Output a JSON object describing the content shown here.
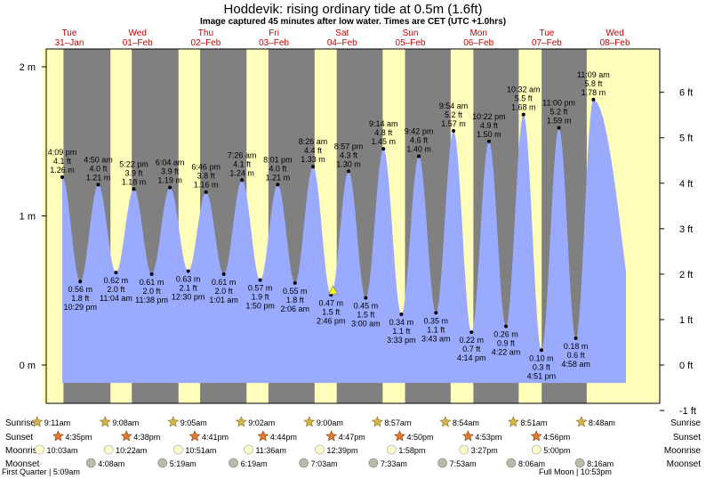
{
  "title": "Hoddevik: rising  ordinary tide at 0.5m (1.6ft)",
  "subtitle": "Image captured 45 minutes after low water. Times are CET (UTC +1.0hrs)",
  "chart_data": {
    "type": "area",
    "y_unit_left": "m",
    "y_unit_right": "ft",
    "ylim_m": [
      -0.63,
      2.08
    ],
    "yticks_left": [
      "2 m",
      "1 m",
      "0 m"
    ],
    "yticks_right": [
      "6 ft",
      "5 ft",
      "4 ft",
      "3 ft",
      "2 ft",
      "1 ft",
      "0 ft",
      "-1 ft"
    ],
    "days": [
      {
        "dow": "Tue",
        "date": "31–Jan"
      },
      {
        "dow": "Wed",
        "date": "01–Feb"
      },
      {
        "dow": "Thu",
        "date": "02–Feb"
      },
      {
        "dow": "Fri",
        "date": "03–Feb"
      },
      {
        "dow": "Sat",
        "date": "04–Feb"
      },
      {
        "dow": "Sun",
        "date": "05–Feb"
      },
      {
        "dow": "Mon",
        "date": "06–Feb"
      },
      {
        "dow": "Tue",
        "date": "07–Feb"
      },
      {
        "dow": "Wed",
        "date": "08–Feb"
      }
    ],
    "tides": [
      {
        "type": "high",
        "time": "4:09 pm",
        "m": 1.26,
        "ft": "4.1 ft",
        "m_label": "1.26 m"
      },
      {
        "type": "low",
        "time": "10:29 pm",
        "m": 0.56,
        "ft": "1.8 ft",
        "m_label": "0.56 m"
      },
      {
        "type": "high",
        "time": "4:50 am",
        "m": 1.21,
        "ft": "4.0 ft",
        "m_label": "1.21 m"
      },
      {
        "type": "low",
        "time": "11:04 am",
        "m": 0.62,
        "ft": "2.0 ft",
        "m_label": "0.62 m"
      },
      {
        "type": "high",
        "time": "5:22 pm",
        "m": 1.18,
        "ft": "3.9 ft",
        "m_label": "1.18 m"
      },
      {
        "type": "low",
        "time": "11:38 pm",
        "m": 0.61,
        "ft": "2.0 ft",
        "m_label": "0.61 m"
      },
      {
        "type": "high",
        "time": "6:04 am",
        "m": 1.19,
        "ft": "3.9 ft",
        "m_label": "1.19 m"
      },
      {
        "type": "low",
        "time": "12:30 pm",
        "m": 0.63,
        "ft": "2.1 ft",
        "m_label": "0.63 m"
      },
      {
        "type": "high",
        "time": "6:46 pm",
        "m": 1.16,
        "ft": "3.8 ft",
        "m_label": "1.16 m"
      },
      {
        "type": "low",
        "time": "1:01 am",
        "m": 0.61,
        "ft": "2.0 ft",
        "m_label": "0.61 m"
      },
      {
        "type": "high",
        "time": "7:26 am",
        "m": 1.24,
        "ft": "4.1 ft",
        "m_label": "1.24 m"
      },
      {
        "type": "low",
        "time": "1:50 pm",
        "m": 0.57,
        "ft": "1.9 ft",
        "m_label": "0.57 m"
      },
      {
        "type": "high",
        "time": "8:01 pm",
        "m": 1.21,
        "ft": "4.0 ft",
        "m_label": "1.21 m"
      },
      {
        "type": "low",
        "time": "2:06 am",
        "m": 0.55,
        "ft": "1.8 ft",
        "m_label": "0.55 m"
      },
      {
        "type": "high",
        "time": "8:26 am",
        "m": 1.33,
        "ft": "4.4 ft",
        "m_label": "1.33 m"
      },
      {
        "type": "low",
        "time": "2:46 pm",
        "m": 0.47,
        "ft": "1.5 ft",
        "m_label": "0.47 m"
      },
      {
        "type": "high",
        "time": "8:57 pm",
        "m": 1.3,
        "ft": "4.3 ft",
        "m_label": "1.30 m"
      },
      {
        "type": "low",
        "time": "3:00 am",
        "m": 0.45,
        "ft": "1.5 ft",
        "m_label": "0.45 m"
      },
      {
        "type": "high",
        "time": "9:14 am",
        "m": 1.45,
        "ft": "4.8 ft",
        "m_label": "1.45 m"
      },
      {
        "type": "low",
        "time": "3:33 pm",
        "m": 0.34,
        "ft": "1.1 ft",
        "m_label": "0.34 m"
      },
      {
        "type": "high",
        "time": "9:42 pm",
        "m": 1.4,
        "ft": "4.6 ft",
        "m_label": "1.40 m"
      },
      {
        "type": "low",
        "time": "3:43 am",
        "m": 0.35,
        "ft": "1.1 ft",
        "m_label": "0.35 m"
      },
      {
        "type": "high",
        "time": "9:54 am",
        "m": 1.57,
        "ft": "5.2 ft",
        "m_label": "1.57 m"
      },
      {
        "type": "low",
        "time": "4:14 pm",
        "m": 0.22,
        "ft": "0.7 ft",
        "m_label": "0.22 m"
      },
      {
        "type": "high",
        "time": "10:22 pm",
        "m": 1.5,
        "ft": "4.9 ft",
        "m_label": "1.50 m"
      },
      {
        "type": "low",
        "time": "4:22 am",
        "m": 0.26,
        "ft": "0.9 ft",
        "m_label": "0.26 m"
      },
      {
        "type": "high",
        "time": "10:32 am",
        "m": 1.68,
        "ft": "5.5 ft",
        "m_label": "1.68 m"
      },
      {
        "type": "low",
        "time": "4:51 pm",
        "m": 0.1,
        "ft": "0.3 ft",
        "m_label": "0.10 m"
      },
      {
        "type": "high",
        "time": "11:00 pm",
        "m": 1.59,
        "ft": "5.2 ft",
        "m_label": "1.59 m"
      },
      {
        "type": "low",
        "time": "4:58 am",
        "m": 0.18,
        "ft": "0.6 ft",
        "m_label": "0.18 m"
      },
      {
        "type": "high",
        "time": "11:09 am",
        "m": 1.78,
        "ft": "5.8 ft",
        "m_label": "1.78 m"
      }
    ],
    "current_marker": {
      "time": "3:31 pm Sat 04-Feb",
      "m": 0.5
    },
    "colors": {
      "water": "#99aaff",
      "day": "#ffffbb",
      "night": "#808080",
      "day_label": "#cc0000",
      "marker": "#ffff00"
    }
  },
  "rows": {
    "labels": {
      "sunrise": "Sunrise",
      "sunset": "Sunset",
      "moonrise": "Moonrise",
      "moonset": "Moonset"
    },
    "sunrise": [
      "9:11am",
      "9:08am",
      "9:05am",
      "9:02am",
      "9:00am",
      "8:57am",
      "8:54am",
      "8:51am",
      "8:48am"
    ],
    "sunset": [
      "4:35pm",
      "4:38pm",
      "4:41pm",
      "4:44pm",
      "4:47pm",
      "4:50pm",
      "4:53pm",
      "4:56pm"
    ],
    "moonrise": [
      "10:03am",
      "10:22am",
      "10:51am",
      "11:36am",
      "12:39pm",
      "1:58pm",
      "3:27pm",
      "5:00pm"
    ],
    "moonset": [
      "4:08am",
      "5:19am",
      "6:19am",
      "7:03am",
      "7:33am",
      "7:53am",
      "8:06am",
      "8:16am"
    ]
  },
  "moon_phases": {
    "first_quarter": "First Quarter | 5:09am",
    "full_moon": "Full Moon | 10:53pm"
  }
}
